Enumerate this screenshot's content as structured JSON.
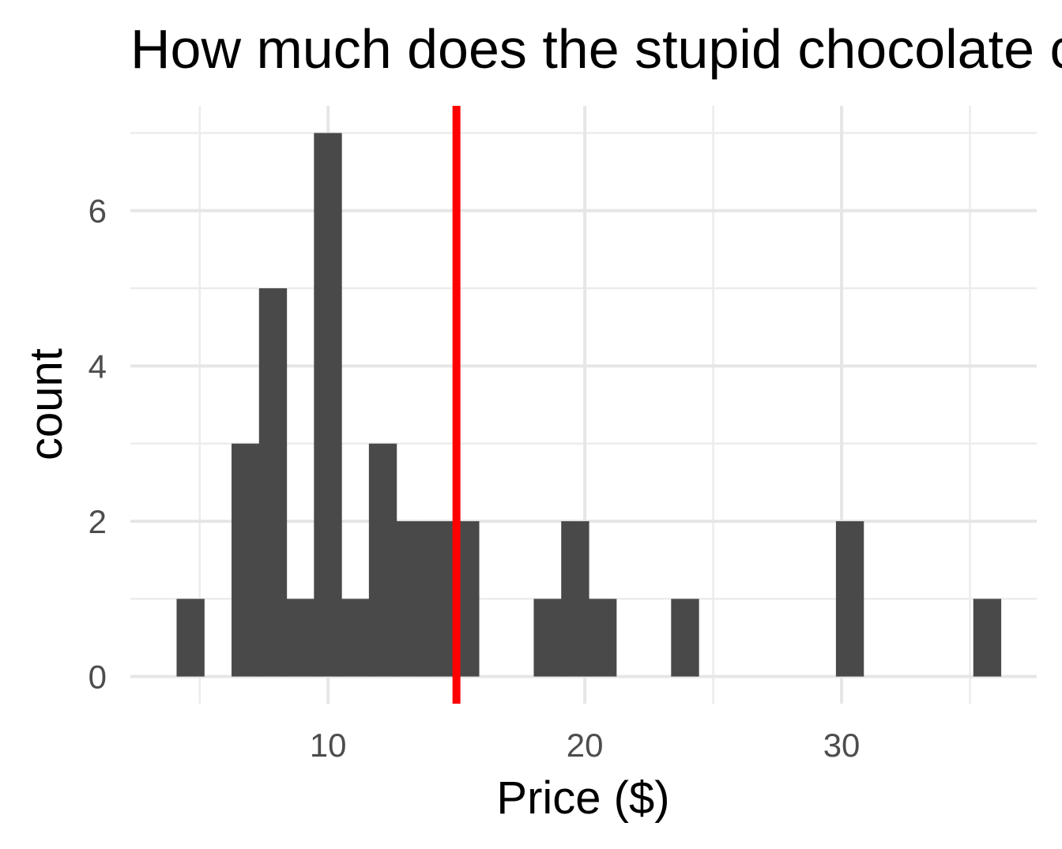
{
  "chart_data": {
    "type": "histogram",
    "title": "How much does the stupid chocolate cost?",
    "xlabel": "Price ($)",
    "ylabel": "count",
    "xlim": [
      2.3,
      37.6
    ],
    "ylim": [
      -0.35,
      7.35
    ],
    "x_ticks": [
      10,
      20,
      30
    ],
    "x_minor": [
      5,
      15,
      25,
      35
    ],
    "y_ticks": [
      0,
      2,
      4,
      6
    ],
    "y_minor": [
      1,
      3,
      5,
      7
    ],
    "grid": true,
    "bar_color": "#494949",
    "bins": [
      {
        "x0": 4.1,
        "x1": 5.17,
        "count": 1
      },
      {
        "x0": 5.17,
        "x1": 6.24,
        "count": 0
      },
      {
        "x0": 6.24,
        "x1": 7.31,
        "count": 3
      },
      {
        "x0": 7.31,
        "x1": 8.38,
        "count": 5
      },
      {
        "x0": 8.38,
        "x1": 9.45,
        "count": 1
      },
      {
        "x0": 9.45,
        "x1": 10.52,
        "count": 7
      },
      {
        "x0": 10.52,
        "x1": 11.59,
        "count": 1
      },
      {
        "x0": 11.59,
        "x1": 12.66,
        "count": 3
      },
      {
        "x0": 12.66,
        "x1": 13.73,
        "count": 2
      },
      {
        "x0": 13.73,
        "x1": 14.8,
        "count": 2
      },
      {
        "x0": 14.8,
        "x1": 15.87,
        "count": 2
      },
      {
        "x0": 15.87,
        "x1": 16.94,
        "count": 0
      },
      {
        "x0": 16.94,
        "x1": 18.01,
        "count": 0
      },
      {
        "x0": 18.01,
        "x1": 19.08,
        "count": 1
      },
      {
        "x0": 19.08,
        "x1": 20.15,
        "count": 2
      },
      {
        "x0": 20.15,
        "x1": 21.22,
        "count": 1
      },
      {
        "x0": 21.22,
        "x1": 22.29,
        "count": 0
      },
      {
        "x0": 22.29,
        "x1": 23.36,
        "count": 0
      },
      {
        "x0": 23.36,
        "x1": 24.43,
        "count": 1
      },
      {
        "x0": 24.43,
        "x1": 25.5,
        "count": 0
      },
      {
        "x0": 25.5,
        "x1": 26.57,
        "count": 0
      },
      {
        "x0": 26.57,
        "x1": 27.64,
        "count": 0
      },
      {
        "x0": 27.64,
        "x1": 28.71,
        "count": 0
      },
      {
        "x0": 28.71,
        "x1": 29.78,
        "count": 0
      },
      {
        "x0": 29.78,
        "x1": 30.85,
        "count": 2
      },
      {
        "x0": 30.85,
        "x1": 31.92,
        "count": 0
      },
      {
        "x0": 31.92,
        "x1": 32.99,
        "count": 0
      },
      {
        "x0": 32.99,
        "x1": 34.06,
        "count": 0
      },
      {
        "x0": 34.06,
        "x1": 35.13,
        "count": 0
      },
      {
        "x0": 35.13,
        "x1": 36.2,
        "count": 1
      }
    ],
    "reference_line": {
      "x": 15.0,
      "color": "#ff0000"
    }
  }
}
